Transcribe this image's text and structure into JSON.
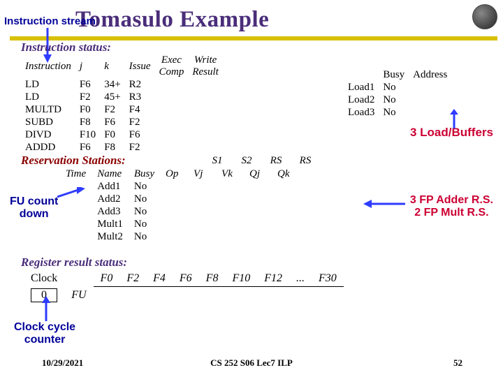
{
  "title": "Tomasulo Example",
  "colors": {
    "title": "#4a2d7a",
    "underline": "#d8c000",
    "annot_red": "#cc0033",
    "annot_blue": "#000099",
    "arrow_blue": "#2e3cff",
    "res_label": "#8b0000"
  },
  "annotations": {
    "instr_stream": "Instruction stream",
    "load_buffers": "3 Load/Buffers",
    "fu_count": "FU count\ndown",
    "fp_rs": "3 FP Adder R.S.\n2 FP Mult R.S.",
    "clock_counter": "Clock cycle\ncounter"
  },
  "sections": {
    "instruction_status": "Instruction status:",
    "reservation_stations": "Reservation Stations:",
    "register_result": "Register result status:"
  },
  "instr_headers": [
    "Instruction",
    "j",
    "k",
    "Issue",
    "Exec\nComp",
    "Write\nResult"
  ],
  "instr_rows": [
    [
      "LD",
      "F6",
      "34+",
      "R2",
      "",
      "",
      ""
    ],
    [
      "LD",
      "F2",
      "45+",
      "R3",
      "",
      "",
      ""
    ],
    [
      "MULTD",
      "F0",
      "F2",
      "F4",
      "",
      "",
      ""
    ],
    [
      "SUBD",
      "F8",
      "F6",
      "F2",
      "",
      "",
      ""
    ],
    [
      "DIVD",
      "F10",
      "F0",
      "F6",
      "",
      "",
      ""
    ],
    [
      "ADDD",
      "F6",
      "F8",
      "F2",
      "",
      "",
      ""
    ]
  ],
  "load_headers": [
    "",
    "Busy",
    "Address"
  ],
  "load_rows": [
    [
      "Load1",
      "No",
      ""
    ],
    [
      "Load2",
      "No",
      ""
    ],
    [
      "Load3",
      "No",
      ""
    ]
  ],
  "res_headers_top": [
    "",
    "",
    "",
    "",
    "S1",
    "S2",
    "RS",
    "RS"
  ],
  "res_headers": [
    "Time",
    "Name",
    "Busy",
    "Op",
    "Vj",
    "Vk",
    "Qj",
    "Qk"
  ],
  "res_rows": [
    [
      "",
      "Add1",
      "No",
      "",
      "",
      "",
      "",
      ""
    ],
    [
      "",
      "Add2",
      "No",
      "",
      "",
      "",
      "",
      ""
    ],
    [
      "",
      "Add3",
      "No",
      "",
      "",
      "",
      "",
      ""
    ],
    [
      "",
      "Mult1",
      "No",
      "",
      "",
      "",
      "",
      ""
    ],
    [
      "",
      "Mult2",
      "No",
      "",
      "",
      "",
      "",
      ""
    ]
  ],
  "reg_clock_label": "Clock",
  "reg_clock_value": "0",
  "reg_fu_label": "FU",
  "reg_cols": [
    "F0",
    "F2",
    "F4",
    "F6",
    "F8",
    "F10",
    "F12",
    "...",
    "F30"
  ],
  "footer": {
    "date": "10/29/2021",
    "center": "CS 252 S06 Lec7 ILP",
    "page": "52"
  }
}
